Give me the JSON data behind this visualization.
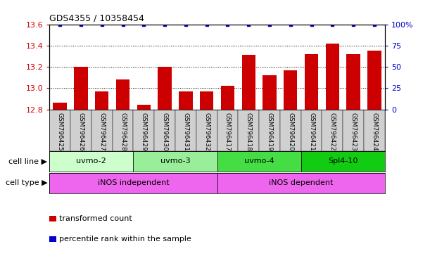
{
  "title": "GDS4355 / 10358454",
  "samples": [
    "GSM796425",
    "GSM796426",
    "GSM796427",
    "GSM796428",
    "GSM796429",
    "GSM796430",
    "GSM796431",
    "GSM796432",
    "GSM796417",
    "GSM796418",
    "GSM796419",
    "GSM796420",
    "GSM796421",
    "GSM796422",
    "GSM796423",
    "GSM796424"
  ],
  "bar_values": [
    12.86,
    13.2,
    12.97,
    13.08,
    12.84,
    13.2,
    12.97,
    12.97,
    13.02,
    13.31,
    13.12,
    13.17,
    13.32,
    13.42,
    13.32,
    13.35
  ],
  "percentile_values": [
    100,
    100,
    100,
    100,
    100,
    100,
    100,
    100,
    100,
    100,
    100,
    100,
    100,
    100,
    100,
    100
  ],
  "bar_color": "#cc0000",
  "percentile_color": "#0000cc",
  "ylim_left": [
    12.8,
    13.6
  ],
  "ylim_right": [
    0,
    100
  ],
  "yticks_left": [
    12.8,
    13.0,
    13.2,
    13.4,
    13.6
  ],
  "yticks_right": [
    0,
    25,
    50,
    75,
    100
  ],
  "cell_line_groups": [
    {
      "label": "uvmo-2",
      "start": 0,
      "end": 4,
      "color": "#ccffcc"
    },
    {
      "label": "uvmo-3",
      "start": 4,
      "end": 8,
      "color": "#99ee99"
    },
    {
      "label": "uvmo-4",
      "start": 8,
      "end": 12,
      "color": "#44dd44"
    },
    {
      "label": "Spl4-10",
      "start": 12,
      "end": 16,
      "color": "#11cc11"
    }
  ],
  "cell_type_groups": [
    {
      "label": "iNOS independent",
      "start": 0,
      "end": 8,
      "color": "#ee66ee"
    },
    {
      "label": "iNOS dependent",
      "start": 8,
      "end": 16,
      "color": "#ee66ee"
    }
  ],
  "cell_line_label": "cell line",
  "cell_type_label": "cell type",
  "legend_items": [
    {
      "label": "transformed count",
      "color": "#cc0000"
    },
    {
      "label": "percentile rank within the sample",
      "color": "#0000cc"
    }
  ],
  "sample_label_bg": "#d0d0d0",
  "background_color": "#ffffff"
}
